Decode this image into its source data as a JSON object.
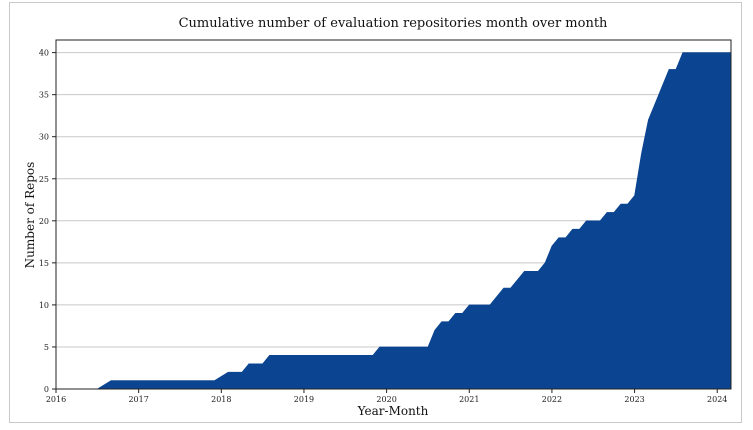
{
  "chart_data": {
    "type": "area",
    "title": "Cumulative number of evaluation repositories month over month",
    "xlabel": "Year-Month",
    "ylabel": "Number of Repos",
    "xlim": [
      "2016-01",
      "2024-03"
    ],
    "ylim": [
      0,
      41.5
    ],
    "x_ticks": [
      "2016",
      "2017",
      "2018",
      "2019",
      "2020",
      "2021",
      "2022",
      "2023",
      "2024"
    ],
    "y_ticks": [
      0,
      5,
      10,
      15,
      20,
      25,
      30,
      35,
      40
    ],
    "grid": "horizontal",
    "fill_color": "#0b4490",
    "series": [
      {
        "points": [
          [
            "2016-01",
            0
          ],
          [
            "2016-07",
            0
          ],
          [
            "2016-09",
            1
          ],
          [
            "2017-12",
            1
          ],
          [
            "2018-02",
            2
          ],
          [
            "2018-04",
            2
          ],
          [
            "2018-05",
            3
          ],
          [
            "2018-07",
            3
          ],
          [
            "2018-08",
            4
          ],
          [
            "2019-11",
            4
          ],
          [
            "2019-12",
            5
          ],
          [
            "2020-07",
            5
          ],
          [
            "2020-08",
            7
          ],
          [
            "2020-09",
            8
          ],
          [
            "2020-10",
            8
          ],
          [
            "2020-11",
            9
          ],
          [
            "2020-12",
            9
          ],
          [
            "2021-01",
            10
          ],
          [
            "2021-04",
            10
          ],
          [
            "2021-05",
            11
          ],
          [
            "2021-06",
            12
          ],
          [
            "2021-07",
            12
          ],
          [
            "2021-09",
            14
          ],
          [
            "2021-10",
            14
          ],
          [
            "2021-11",
            14
          ],
          [
            "2021-12",
            15
          ],
          [
            "2022-01",
            17
          ],
          [
            "2022-02",
            18
          ],
          [
            "2022-03",
            18
          ],
          [
            "2022-04",
            19
          ],
          [
            "2022-05",
            19
          ],
          [
            "2022-06",
            20
          ],
          [
            "2022-08",
            20
          ],
          [
            "2022-09",
            21
          ],
          [
            "2022-10",
            21
          ],
          [
            "2022-11",
            22
          ],
          [
            "2022-12",
            22
          ],
          [
            "2023-01",
            23
          ],
          [
            "2023-02",
            28
          ],
          [
            "2023-03",
            32
          ],
          [
            "2023-04",
            34
          ],
          [
            "2023-05",
            36
          ],
          [
            "2023-06",
            38
          ],
          [
            "2023-07",
            38
          ],
          [
            "2023-08",
            40
          ],
          [
            "2024-03",
            40
          ]
        ]
      }
    ]
  }
}
